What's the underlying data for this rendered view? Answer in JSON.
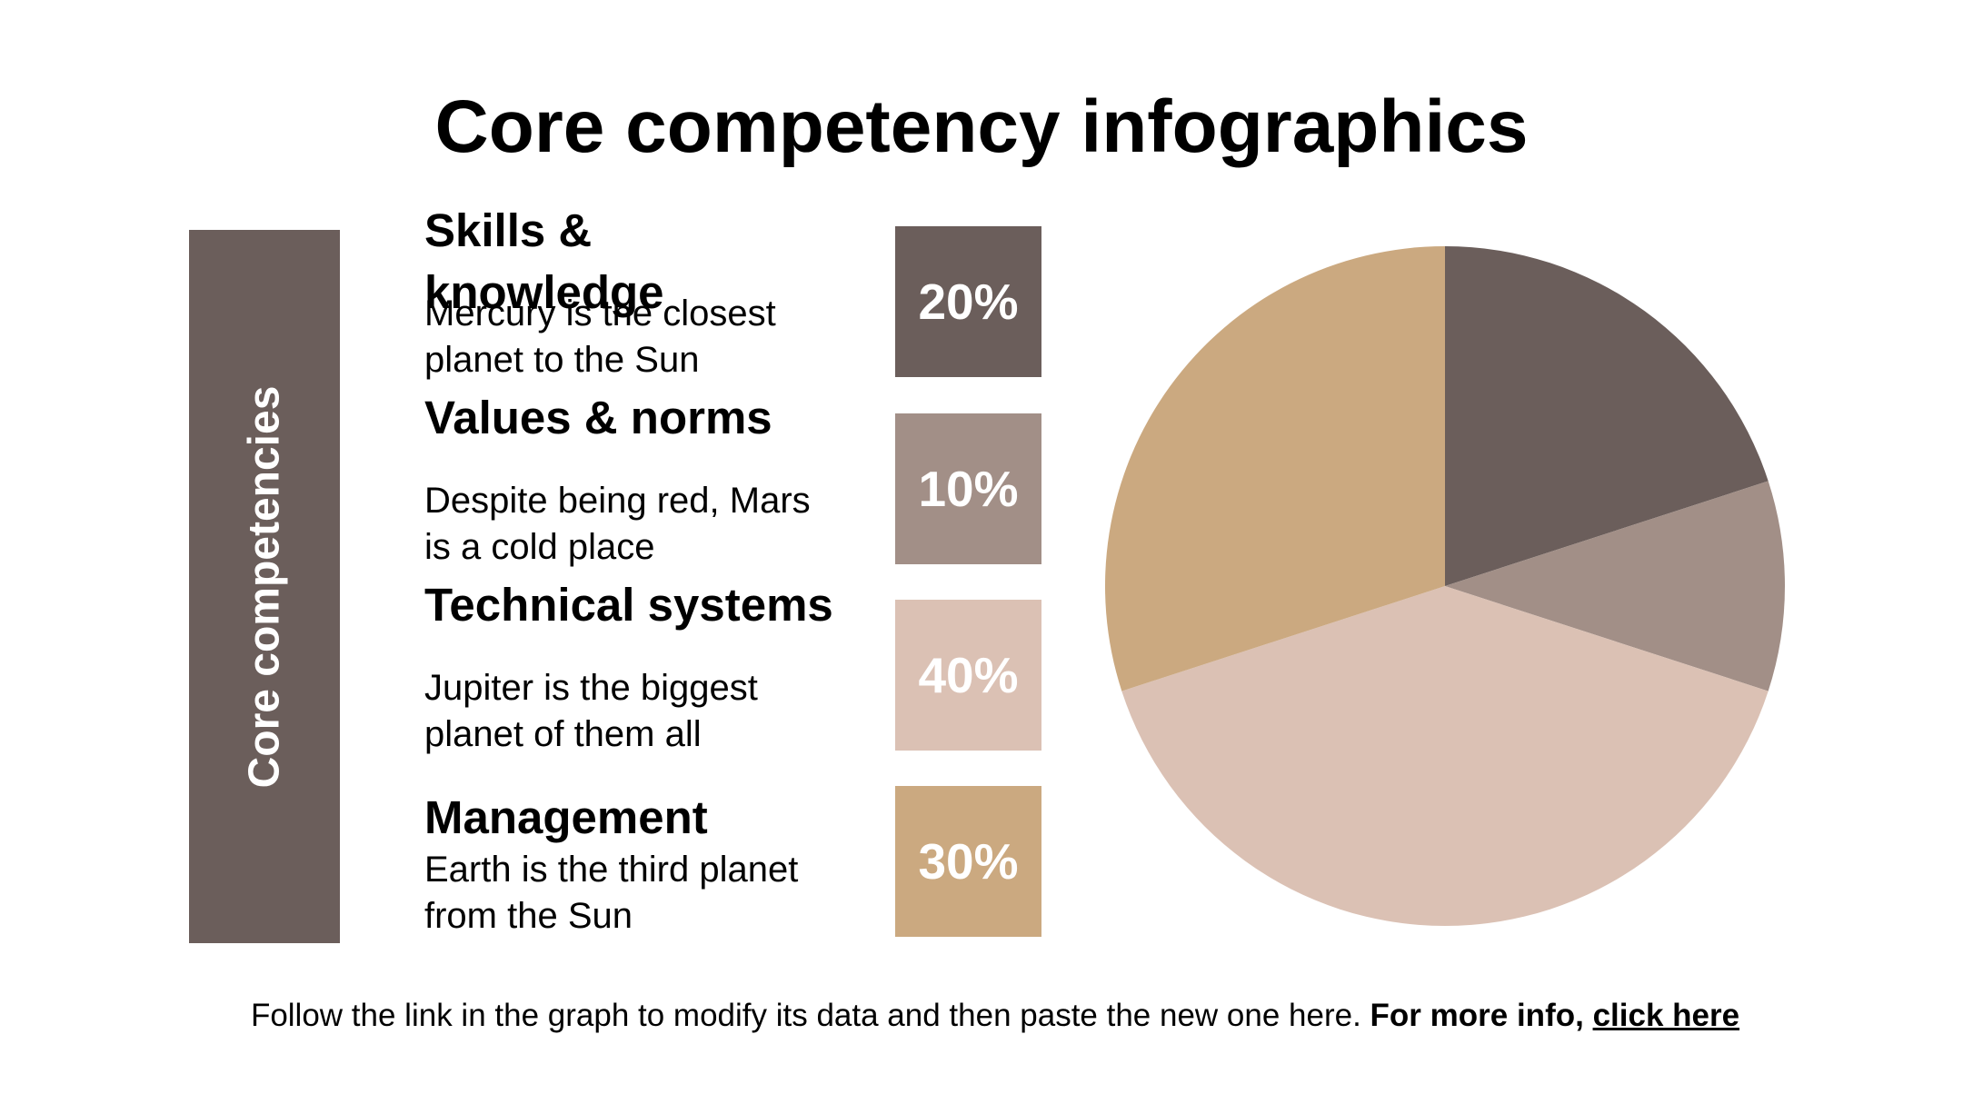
{
  "title": "Core competency infographics",
  "side_label": "Core competencies",
  "items": [
    {
      "title": "Skills & knowledge",
      "desc": "Mercury is the closest planet to the Sun",
      "pct": "20%",
      "color": "#6b5e5b"
    },
    {
      "title": "Values & norms",
      "desc": "Despite being red, Mars is a cold place",
      "pct": "10%",
      "color": "#a28f87"
    },
    {
      "title": "Technical systems",
      "desc": "Jupiter is the biggest planet of them all",
      "pct": "40%",
      "color": "#dbc1b4"
    },
    {
      "title": "Management",
      "desc": "Earth is the third planet from the Sun",
      "pct": "30%",
      "color": "#cba980"
    }
  ],
  "footer": {
    "text": "Follow the link in the graph to modify its data and then paste the new one here.",
    "bold": "For more info,",
    "link": "click here"
  },
  "chart_data": {
    "type": "pie",
    "categories": [
      "Skills & knowledge",
      "Values & norms",
      "Technical systems",
      "Management"
    ],
    "values": [
      20,
      10,
      40,
      30
    ],
    "colors": [
      "#6b5e5b",
      "#a28f87",
      "#dbc1b4",
      "#cba980"
    ]
  }
}
